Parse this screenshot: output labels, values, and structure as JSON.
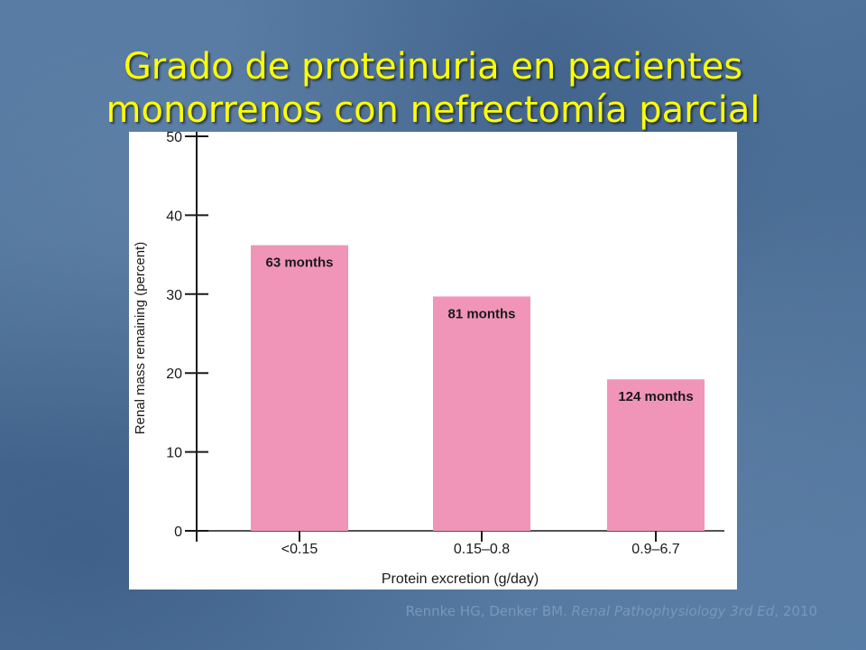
{
  "slide": {
    "title_line1": "Grado de proteinuria en pacientes",
    "title_line2": "monorrenos con nefrectomía parcial"
  },
  "citation": {
    "authors": "Rennke HG, Denker BM. ",
    "book": "Renal Pathophysiology 3rd Ed",
    "year": ", 2010"
  },
  "colors": {
    "title": "#ffff00",
    "bar_fill": "#f095b7",
    "axis": "#1a1a1a"
  },
  "chart_data": {
    "type": "bar",
    "categories": [
      "<0.15",
      "0.15–0.8",
      "0.9–6.7"
    ],
    "values": [
      36.2,
      29.7,
      19.2
    ],
    "data_labels": [
      "63 months",
      "81 months",
      "124 months"
    ],
    "xlabel": "Protein excretion (g/day)",
    "ylabel": "Renal mass remaining (percent)",
    "ylim": [
      0,
      50
    ],
    "yticks": [
      0,
      10,
      20,
      30,
      40,
      50
    ],
    "grid": false,
    "legend": "none"
  }
}
